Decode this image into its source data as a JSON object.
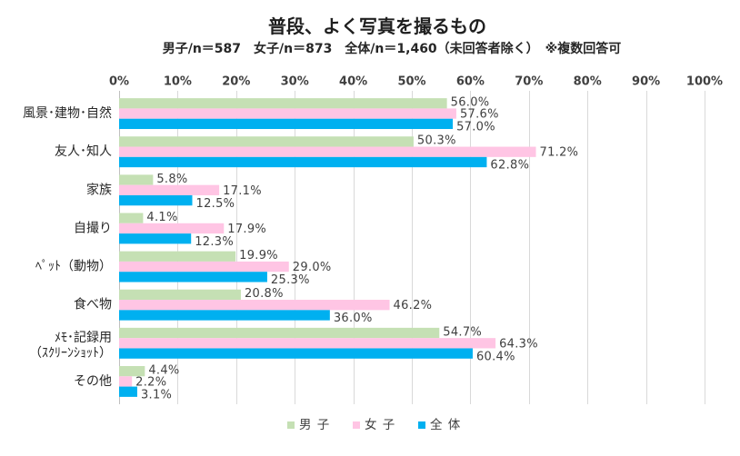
{
  "chart_data": {
    "type": "bar",
    "orientation": "horizontal",
    "title": "普段、よく写真を撮るもの",
    "subtitle": "男子/n＝587　女子/n＝873　全体/n＝1,460（未回答者除く）　※複数回答可",
    "categories": [
      "風景･建物･自然",
      "友人･知人",
      "家族",
      "自撮り",
      "ﾍﾟｯﾄ（動物）",
      "食べ物",
      "ﾒﾓ･記録用\n（ｽｸﾘｰﾝｼｮｯﾄ）",
      "その他"
    ],
    "series": [
      {
        "name": "男 子",
        "color": "#c5e0b4",
        "values": [
          56.0,
          50.3,
          5.8,
          4.1,
          19.9,
          20.8,
          54.7,
          4.4
        ]
      },
      {
        "name": "女 子",
        "color": "#ffc5e4",
        "values": [
          57.6,
          71.2,
          17.1,
          17.9,
          29.0,
          46.2,
          64.3,
          2.2
        ]
      },
      {
        "name": "全 体",
        "color": "#00b0f0",
        "values": [
          57.0,
          62.8,
          12.5,
          12.3,
          25.3,
          36.0,
          60.4,
          3.1
        ]
      }
    ],
    "xlim": [
      0,
      100
    ],
    "x_tick_labels": [
      "0%",
      "10%",
      "20%",
      "30%",
      "40%",
      "50%",
      "60%",
      "70%",
      "80%",
      "90%",
      "100%"
    ],
    "value_axis_position": "top",
    "gridlines": "vertical",
    "data_labels": true,
    "legend": "bottom"
  }
}
